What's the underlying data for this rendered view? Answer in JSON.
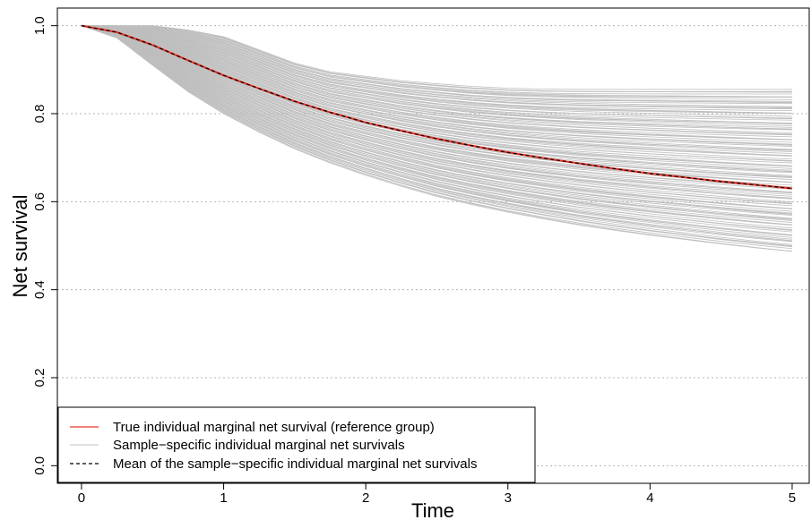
{
  "chart_data": {
    "type": "line",
    "title": "",
    "xlabel": "Time",
    "ylabel": "Net survival",
    "xlim": [
      -0.17,
      5.12
    ],
    "ylim": [
      -0.04,
      1.04
    ],
    "xticks": [
      0,
      1,
      2,
      3,
      4,
      5
    ],
    "xtick_labels": [
      "0",
      "1",
      "2",
      "3",
      "4",
      "5"
    ],
    "yticks": [
      0.0,
      0.2,
      0.4,
      0.6,
      0.8,
      1.0
    ],
    "ytick_labels": [
      "0.0",
      "0.2",
      "0.4",
      "0.6",
      "0.8",
      "1.0"
    ],
    "grid": "horizontal dotted",
    "legend_position": "bottom-left",
    "x": [
      0,
      0.25,
      0.5,
      0.75,
      1,
      1.25,
      1.5,
      1.75,
      2,
      2.25,
      2.5,
      2.75,
      3,
      3.25,
      3.5,
      3.75,
      4,
      4.25,
      4.5,
      4.75,
      5
    ],
    "series": [
      {
        "name": "True individual marginal net survival (reference group)",
        "color": "#e8392f",
        "style": "solid",
        "values": [
          1.0,
          0.985,
          0.956,
          0.921,
          0.887,
          0.857,
          0.828,
          0.803,
          0.78,
          0.761,
          0.743,
          0.727,
          0.712,
          0.699,
          0.687,
          0.675,
          0.664,
          0.655,
          0.646,
          0.638,
          0.63
        ]
      },
      {
        "name": "Sample−specific individual marginal net survivals",
        "color": "#bebebe",
        "style": "solid",
        "band": {
          "upper": [
            1.0,
            1.0,
            1.0,
            0.99,
            0.975,
            0.945,
            0.915,
            0.895,
            0.885,
            0.875,
            0.868,
            0.862,
            0.858,
            0.856,
            0.855,
            0.855,
            0.855,
            0.855,
            0.855,
            0.855,
            0.855
          ],
          "lower": [
            1.0,
            0.972,
            0.91,
            0.85,
            0.8,
            0.758,
            0.72,
            0.688,
            0.66,
            0.635,
            0.612,
            0.593,
            0.576,
            0.561,
            0.547,
            0.535,
            0.524,
            0.514,
            0.504,
            0.495,
            0.487
          ]
        }
      },
      {
        "name": "Mean of the sample−specific individual marginal net survivals",
        "color": "#000000",
        "style": "dashed",
        "values": [
          1.0,
          0.985,
          0.956,
          0.921,
          0.887,
          0.857,
          0.828,
          0.803,
          0.78,
          0.761,
          0.743,
          0.727,
          0.712,
          0.699,
          0.687,
          0.675,
          0.664,
          0.655,
          0.646,
          0.638,
          0.63
        ]
      }
    ]
  }
}
